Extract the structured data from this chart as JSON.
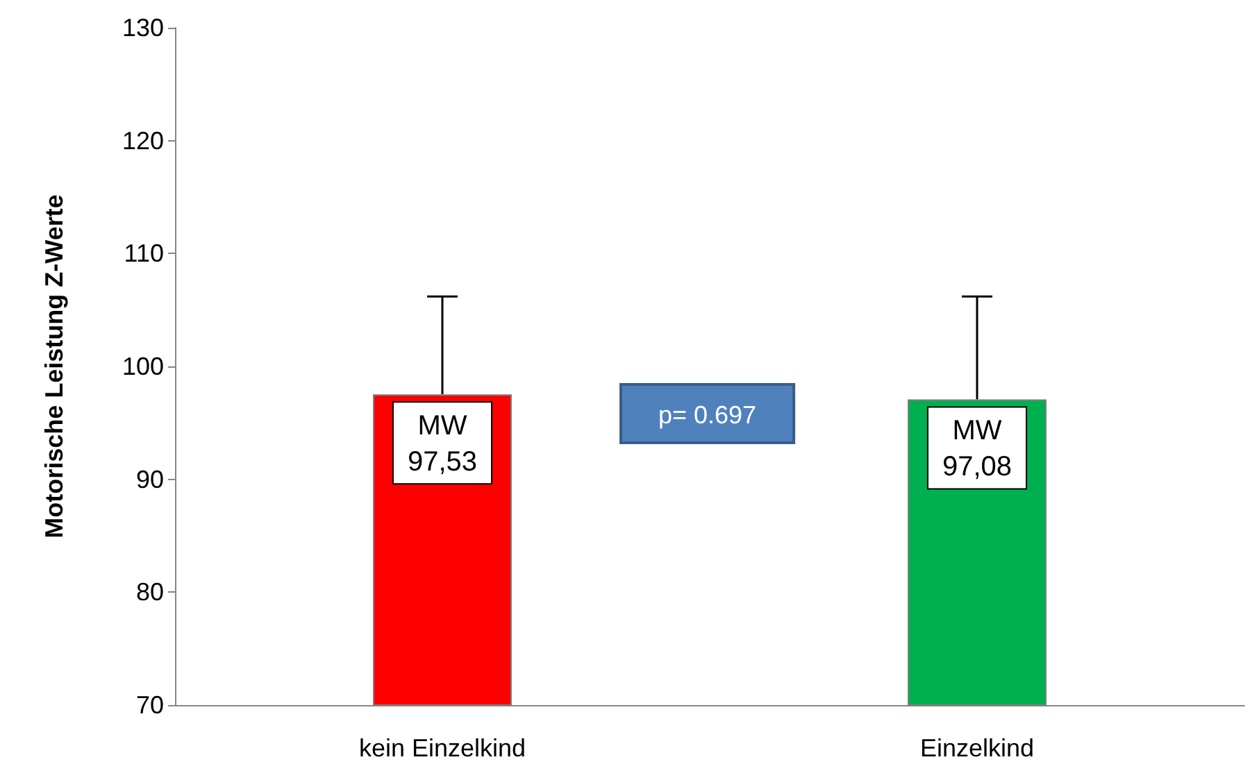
{
  "chart_data": {
    "type": "bar",
    "ylabel": "Motorische Leistung Z-Werte",
    "categories": [
      "kein Einzelkind",
      "Einzelkind"
    ],
    "values": [
      97.53,
      97.08
    ],
    "colors": [
      "#ff0000",
      "#00b050"
    ],
    "errors": [
      [
        97.53,
        106.2
      ],
      [
        97.08,
        106.2
      ]
    ],
    "value_labels": [
      "MW\n97,53",
      "MW\n97,08"
    ],
    "annotations": [
      "p= 0.697"
    ],
    "ylim": [
      70,
      130
    ],
    "yticks": [
      70,
      80,
      90,
      100,
      110,
      120,
      130
    ],
    "grid": false
  }
}
